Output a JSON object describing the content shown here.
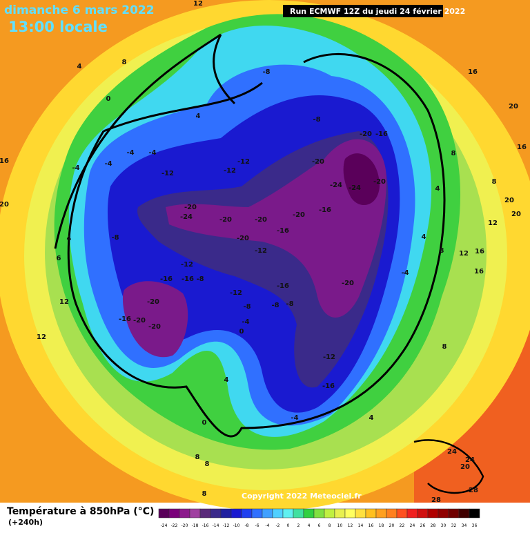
{
  "header": {
    "date": "dimanche 6 mars 2022",
    "time": "13:00 locale",
    "run": "Run ECMWF 12Z du jeudi 24 février 2022"
  },
  "map": {
    "copyright": "Copyright 2022 Meteociel.fr",
    "contour_labels": [
      -24,
      -20,
      -20,
      -20,
      -20,
      -16,
      -20,
      -12,
      -16,
      -20,
      -20,
      -16,
      -24,
      -24,
      -20,
      -12,
      -12,
      -12,
      -8,
      -8,
      -4,
      -4,
      -4,
      -4,
      -8,
      -12,
      -16,
      -16,
      -8,
      -12,
      -16,
      -20,
      -20,
      -20,
      -20,
      -16,
      -8,
      -8,
      -8,
      -4,
      0,
      -12,
      -16,
      -4,
      4,
      0,
      4,
      8,
      -4,
      4,
      8,
      16,
      20,
      16,
      8,
      20,
      20,
      12,
      16,
      16,
      12,
      8,
      4,
      12,
      12,
      16,
      20,
      4,
      8,
      0,
      4,
      12,
      24,
      24,
      20,
      28,
      28,
      8,
      8,
      8,
      6,
      4
    ]
  },
  "legend": {
    "title": "Température à 850hPa (°C)",
    "subtitle": "(+240h)",
    "values": [
      -24,
      -22,
      -20,
      -18,
      -16,
      -14,
      -12,
      -10,
      -8,
      -6,
      -4,
      -2,
      0,
      2,
      4,
      6,
      8,
      10,
      12,
      14,
      16,
      18,
      20,
      22,
      24,
      26,
      28,
      30,
      32,
      34,
      36
    ],
    "colors": [
      "#5a005a",
      "#7a007a",
      "#8c1a8c",
      "#a040a0",
      "#5a2a7a",
      "#3a2a8a",
      "#2020a0",
      "#1a1ad0",
      "#2040f0",
      "#3070ff",
      "#40a0ff",
      "#50d0ff",
      "#60f0f0",
      "#40e0a0",
      "#30d040",
      "#80e040",
      "#c0f040",
      "#e8f050",
      "#ffff60",
      "#ffe040",
      "#ffc020",
      "#ffa020",
      "#ff8020",
      "#ff5020",
      "#f02020",
      "#d01010",
      "#b00000",
      "#900000",
      "#700000",
      "#400000",
      "#000000"
    ]
  }
}
